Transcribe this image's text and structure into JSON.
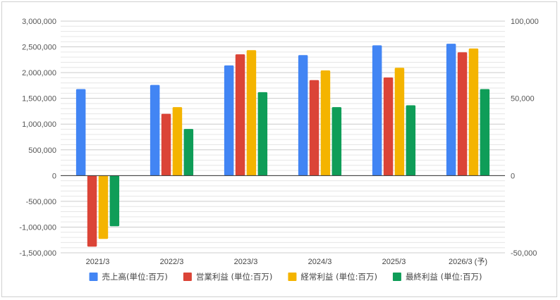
{
  "chart_data": {
    "type": "bar",
    "categories": [
      "2021/3",
      "2022/3",
      "2023/3",
      "2024/3",
      "2025/3",
      "2026/3 (予)"
    ],
    "series": [
      {
        "name": "売上高(単位:百万)",
        "color": "#4285f4",
        "axis": "left",
        "values": [
          1680000,
          1760000,
          2140000,
          2340000,
          2530000,
          2560000
        ]
      },
      {
        "name": "営業利益 (単位:百万)",
        "color": "#db4437",
        "axis": "right",
        "values": [
          -46000,
          40000,
          78500,
          61800,
          63500,
          79800
        ]
      },
      {
        "name": "経常利益 (単位:百万)",
        "color": "#f4b400",
        "axis": "right",
        "values": [
          -41000,
          44300,
          81200,
          68100,
          69800,
          82300
        ]
      },
      {
        "name": "最終利益 (単位:百万)",
        "color": "#0f9d58",
        "axis": "right",
        "values": [
          -32800,
          30200,
          54000,
          44300,
          45500,
          56000
        ]
      }
    ],
    "y_left": {
      "ylim": [
        -1500000,
        3000000
      ],
      "ticks": [
        "3,000,000",
        "2,500,000",
        "2,000,000",
        "1,500,000",
        "1,000,000",
        "500,000",
        "0",
        "-500,000",
        "-1,000,000",
        "-1,500,000"
      ],
      "tick_values": [
        3000000,
        2500000,
        2000000,
        1500000,
        1000000,
        500000,
        0,
        -500000,
        -1000000,
        -1500000
      ]
    },
    "y_right": {
      "ylim": [
        -50000,
        100000
      ],
      "ticks": [
        "100,000",
        "50,000",
        "0",
        "-50,000"
      ],
      "tick_values": [
        100000,
        50000,
        0,
        -50000
      ]
    },
    "grid": true,
    "minor_grid": true,
    "legend": "bottom"
  }
}
